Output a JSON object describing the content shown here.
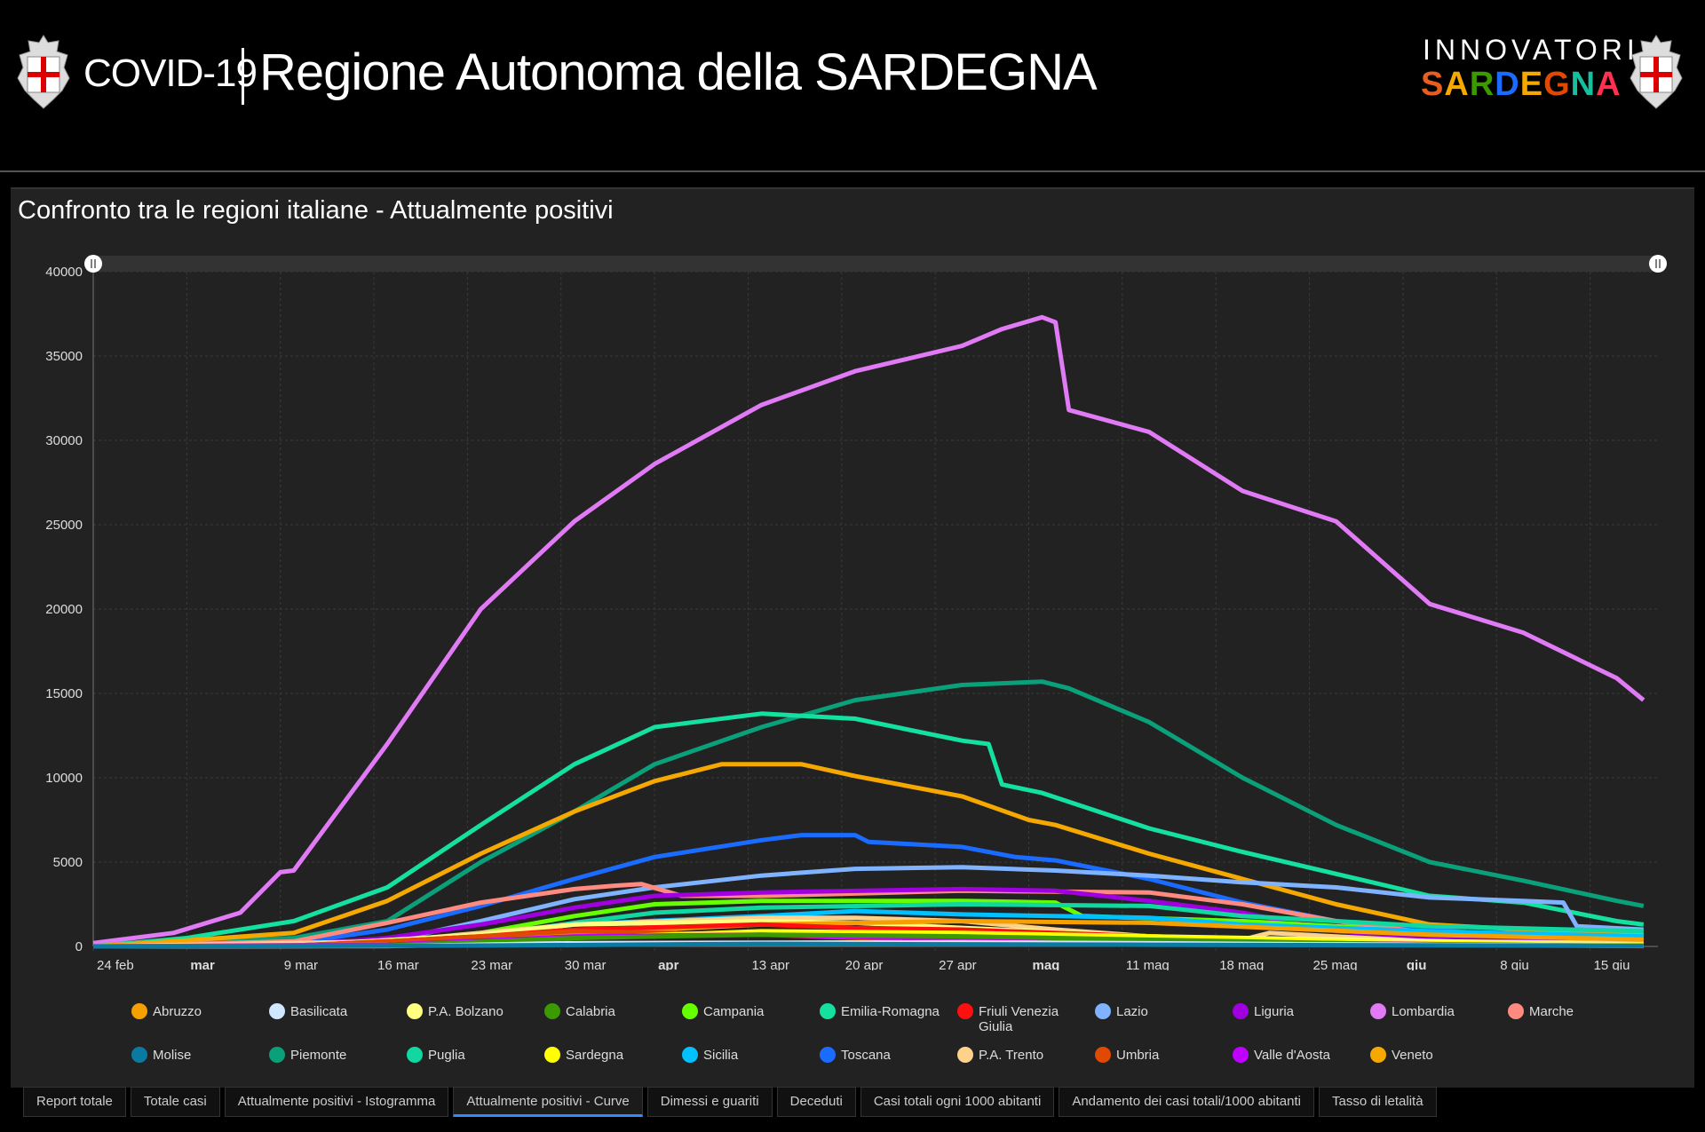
{
  "header": {
    "covid": "COVID-19",
    "title": "Regione Autonoma della SARDEGNA",
    "logo_top": "INNOVATORI",
    "logo_bottom": "SARDEGNA"
  },
  "panel": {
    "title": "Confronto tra le regioni italiane - Attualmente positivi"
  },
  "tabs": [
    {
      "label": "Report totale"
    },
    {
      "label": "Totale casi"
    },
    {
      "label": "Attualmente positivi - Istogramma"
    },
    {
      "label": "Attualmente positivi - Curve",
      "active": true
    },
    {
      "label": "Dimessi e guariti"
    },
    {
      "label": "Deceduti"
    },
    {
      "label": "Casi totali ogni 1000 abitanti"
    },
    {
      "label": "Andamento dei casi totali/1000 abitanti"
    },
    {
      "label": "Tasso di letalità"
    }
  ],
  "chart_data": {
    "type": "line",
    "title": "Confronto tra le regioni italiane - Attualmente positivi",
    "x_unit": "days since 24 feb 2020",
    "ylim": [
      0,
      40000
    ],
    "yticks": [
      0,
      5000,
      10000,
      15000,
      20000,
      25000,
      30000,
      35000,
      40000
    ],
    "xticks": [
      {
        "day": 0,
        "label": "24 feb",
        "bold": false
      },
      {
        "day": 7,
        "label": "mar",
        "bold": true
      },
      {
        "day": 14,
        "label": "9 mar",
        "bold": false
      },
      {
        "day": 21,
        "label": "16 mar",
        "bold": false
      },
      {
        "day": 28,
        "label": "23 mar",
        "bold": false
      },
      {
        "day": 35,
        "label": "30 mar",
        "bold": false
      },
      {
        "day": 42,
        "label": "apr",
        "bold": true
      },
      {
        "day": 49,
        "label": "13 apr",
        "bold": false
      },
      {
        "day": 56,
        "label": "20 apr",
        "bold": false
      },
      {
        "day": 63,
        "label": "27 apr",
        "bold": false
      },
      {
        "day": 70,
        "label": "mag",
        "bold": true
      },
      {
        "day": 77,
        "label": "11 mag",
        "bold": false
      },
      {
        "day": 84,
        "label": "18 mag",
        "bold": false
      },
      {
        "day": 91,
        "label": "25 mag",
        "bold": false
      },
      {
        "day": 98,
        "label": "giu",
        "bold": true
      },
      {
        "day": 105,
        "label": "8 giu",
        "bold": false
      },
      {
        "day": 112,
        "label": "15 giu",
        "bold": false
      }
    ],
    "grid": true,
    "legend_position": "bottom",
    "series": [
      {
        "name": "Abruzzo",
        "color": "#f5a000",
        "points": [
          [
            0,
            0
          ],
          [
            22,
            100
          ],
          [
            29,
            500
          ],
          [
            50,
            1300
          ],
          [
            65,
            1500
          ],
          [
            79,
            1400
          ],
          [
            100,
            700
          ],
          [
            116,
            400
          ]
        ]
      },
      {
        "name": "Basilicata",
        "color": "#cfe8ff",
        "points": [
          [
            0,
            0
          ],
          [
            22,
            20
          ],
          [
            36,
            200
          ],
          [
            65,
            250
          ],
          [
            116,
            30
          ]
        ]
      },
      {
        "name": "P.A. Bolzano",
        "color": "#ffff80",
        "points": [
          [
            0,
            0
          ],
          [
            15,
            50
          ],
          [
            29,
            700
          ],
          [
            36,
            1300
          ],
          [
            50,
            1500
          ],
          [
            57,
            1400
          ],
          [
            65,
            1100
          ],
          [
            79,
            600
          ],
          [
            116,
            100
          ]
        ]
      },
      {
        "name": "Calabria",
        "color": "#3a9a00",
        "points": [
          [
            0,
            0
          ],
          [
            22,
            50
          ],
          [
            36,
            500
          ],
          [
            50,
            700
          ],
          [
            65,
            600
          ],
          [
            100,
            100
          ],
          [
            116,
            50
          ]
        ]
      },
      {
        "name": "Campania",
        "color": "#66ff00",
        "points": [
          [
            0,
            0
          ],
          [
            22,
            200
          ],
          [
            29,
            800
          ],
          [
            36,
            1800
          ],
          [
            42,
            2500
          ],
          [
            50,
            2700
          ],
          [
            65,
            2700
          ],
          [
            72,
            2600
          ],
          [
            74,
            1800
          ],
          [
            86,
            1500
          ],
          [
            93,
            1200
          ],
          [
            100,
            800
          ],
          [
            116,
            500
          ]
        ]
      },
      {
        "name": "Emilia-Romagna",
        "color": "#14e0a0",
        "points": [
          [
            0,
            0
          ],
          [
            7,
            500
          ],
          [
            15,
            1500
          ],
          [
            22,
            3500
          ],
          [
            29,
            7200
          ],
          [
            36,
            10800
          ],
          [
            42,
            13000
          ],
          [
            50,
            13800
          ],
          [
            57,
            13500
          ],
          [
            65,
            12200
          ],
          [
            67,
            12000
          ],
          [
            68,
            9600
          ],
          [
            71,
            9100
          ],
          [
            79,
            7000
          ],
          [
            86,
            5600
          ],
          [
            93,
            4300
          ],
          [
            100,
            3000
          ],
          [
            107,
            2600
          ],
          [
            114,
            1500
          ],
          [
            116,
            1300
          ]
        ]
      },
      {
        "name": "Friuli Venezia Giulia",
        "color": "#ff1010",
        "points": [
          [
            0,
            0
          ],
          [
            15,
            50
          ],
          [
            22,
            300
          ],
          [
            29,
            600
          ],
          [
            36,
            1000
          ],
          [
            50,
            1300
          ],
          [
            57,
            1100
          ],
          [
            65,
            1000
          ],
          [
            79,
            600
          ],
          [
            86,
            400
          ],
          [
            88,
            400
          ],
          [
            89,
            150
          ],
          [
            116,
            80
          ]
        ]
      },
      {
        "name": "Lazio",
        "color": "#7fb2ff",
        "points": [
          [
            0,
            0
          ],
          [
            15,
            100
          ],
          [
            22,
            300
          ],
          [
            29,
            1500
          ],
          [
            36,
            2800
          ],
          [
            42,
            3500
          ],
          [
            50,
            4200
          ],
          [
            57,
            4600
          ],
          [
            65,
            4700
          ],
          [
            72,
            4500
          ],
          [
            79,
            4200
          ],
          [
            86,
            3800
          ],
          [
            93,
            3500
          ],
          [
            100,
            2900
          ],
          [
            107,
            2700
          ],
          [
            110,
            2600
          ],
          [
            111,
            1200
          ],
          [
            116,
            1000
          ]
        ]
      },
      {
        "name": "Liguria",
        "color": "#a000e0",
        "points": [
          [
            0,
            0
          ],
          [
            15,
            100
          ],
          [
            22,
            500
          ],
          [
            29,
            1300
          ],
          [
            36,
            2300
          ],
          [
            42,
            3000
          ],
          [
            50,
            3200
          ],
          [
            65,
            3400
          ],
          [
            72,
            3300
          ],
          [
            79,
            2700
          ],
          [
            86,
            2000
          ],
          [
            93,
            900
          ],
          [
            100,
            500
          ],
          [
            116,
            300
          ]
        ]
      },
      {
        "name": "Lombardia",
        "color": "#e07af5",
        "points": [
          [
            0,
            200
          ],
          [
            6,
            800
          ],
          [
            11,
            2000
          ],
          [
            14,
            4400
          ],
          [
            15,
            4500
          ],
          [
            22,
            12000
          ],
          [
            29,
            20000
          ],
          [
            36,
            25200
          ],
          [
            42,
            28600
          ],
          [
            50,
            32100
          ],
          [
            57,
            34100
          ],
          [
            65,
            35600
          ],
          [
            68,
            36600
          ],
          [
            71,
            37300
          ],
          [
            72,
            37000
          ],
          [
            73,
            31800
          ],
          [
            79,
            30500
          ],
          [
            86,
            27000
          ],
          [
            93,
            25200
          ],
          [
            100,
            20300
          ],
          [
            107,
            18600
          ],
          [
            114,
            15900
          ],
          [
            116,
            14600
          ]
        ]
      },
      {
        "name": "Marche",
        "color": "#ff8a80",
        "points": [
          [
            0,
            0
          ],
          [
            15,
            300
          ],
          [
            22,
            1400
          ],
          [
            29,
            2600
          ],
          [
            36,
            3400
          ],
          [
            39,
            3600
          ],
          [
            41,
            3700
          ],
          [
            44,
            3000
          ],
          [
            50,
            3000
          ],
          [
            65,
            3300
          ],
          [
            79,
            3200
          ],
          [
            86,
            2500
          ],
          [
            93,
            1500
          ],
          [
            100,
            800
          ],
          [
            116,
            300
          ]
        ]
      },
      {
        "name": "Molise",
        "color": "#0a7aa0",
        "points": [
          [
            0,
            0
          ],
          [
            29,
            50
          ],
          [
            50,
            150
          ],
          [
            79,
            100
          ],
          [
            116,
            30
          ]
        ]
      },
      {
        "name": "Piemonte",
        "color": "#0aa07a",
        "points": [
          [
            0,
            0
          ],
          [
            15,
            500
          ],
          [
            22,
            1500
          ],
          [
            29,
            5000
          ],
          [
            36,
            8000
          ],
          [
            42,
            10800
          ],
          [
            50,
            13000
          ],
          [
            57,
            14600
          ],
          [
            65,
            15500
          ],
          [
            71,
            15700
          ],
          [
            73,
            15300
          ],
          [
            79,
            13300
          ],
          [
            86,
            10000
          ],
          [
            93,
            7200
          ],
          [
            100,
            5000
          ],
          [
            107,
            3900
          ],
          [
            114,
            2700
          ],
          [
            116,
            2400
          ]
        ]
      },
      {
        "name": "Puglia",
        "color": "#10d8a0",
        "points": [
          [
            0,
            0
          ],
          [
            22,
            200
          ],
          [
            29,
            600
          ],
          [
            36,
            1400
          ],
          [
            42,
            2000
          ],
          [
            50,
            2300
          ],
          [
            65,
            2500
          ],
          [
            79,
            2400
          ],
          [
            86,
            1800
          ],
          [
            93,
            1500
          ],
          [
            100,
            1200
          ],
          [
            116,
            900
          ]
        ]
      },
      {
        "name": "Sardegna",
        "color": "#ffff00",
        "points": [
          [
            0,
            0
          ],
          [
            22,
            100
          ],
          [
            29,
            300
          ],
          [
            50,
            900
          ],
          [
            65,
            800
          ],
          [
            79,
            600
          ],
          [
            100,
            200
          ],
          [
            116,
            100
          ]
        ]
      },
      {
        "name": "Sicilia",
        "color": "#00c0ff",
        "points": [
          [
            0,
            0
          ],
          [
            22,
            200
          ],
          [
            29,
            700
          ],
          [
            36,
            1300
          ],
          [
            50,
            1800
          ],
          [
            57,
            2100
          ],
          [
            65,
            1900
          ],
          [
            79,
            1700
          ],
          [
            86,
            1300
          ],
          [
            100,
            900
          ],
          [
            116,
            600
          ]
        ]
      },
      {
        "name": "Toscana",
        "color": "#1a6bff",
        "points": [
          [
            0,
            0
          ],
          [
            15,
            200
          ],
          [
            22,
            1000
          ],
          [
            29,
            2400
          ],
          [
            36,
            4000
          ],
          [
            42,
            5300
          ],
          [
            50,
            6300
          ],
          [
            53,
            6600
          ],
          [
            57,
            6600
          ],
          [
            58,
            6200
          ],
          [
            65,
            5900
          ],
          [
            69,
            5300
          ],
          [
            72,
            5100
          ],
          [
            79,
            4000
          ],
          [
            86,
            2600
          ],
          [
            93,
            1500
          ],
          [
            100,
            1000
          ],
          [
            107,
            600
          ],
          [
            116,
            400
          ]
        ]
      },
      {
        "name": "P.A. Trento",
        "color": "#ffd18a",
        "points": [
          [
            0,
            0
          ],
          [
            22,
            300
          ],
          [
            29,
            800
          ],
          [
            36,
            1300
          ],
          [
            50,
            1700
          ],
          [
            57,
            1700
          ],
          [
            65,
            1500
          ],
          [
            72,
            1000
          ],
          [
            79,
            600
          ],
          [
            86,
            400
          ],
          [
            88,
            800
          ],
          [
            100,
            300
          ],
          [
            116,
            200
          ]
        ]
      },
      {
        "name": "Umbria",
        "color": "#e04a00",
        "points": [
          [
            0,
            0
          ],
          [
            15,
            50
          ],
          [
            22,
            300
          ],
          [
            36,
            900
          ],
          [
            50,
            700
          ],
          [
            65,
            300
          ],
          [
            116,
            20
          ]
        ]
      },
      {
        "name": "Valle d'Aosta",
        "color": "#c000ff",
        "points": [
          [
            0,
            0
          ],
          [
            22,
            100
          ],
          [
            36,
            600
          ],
          [
            50,
            700
          ],
          [
            65,
            400
          ],
          [
            116,
            20
          ]
        ]
      },
      {
        "name": "Veneto",
        "color": "#f5a800",
        "points": [
          [
            0,
            0
          ],
          [
            6,
            300
          ],
          [
            15,
            800
          ],
          [
            22,
            2700
          ],
          [
            29,
            5500
          ],
          [
            36,
            8000
          ],
          [
            42,
            9800
          ],
          [
            47,
            10800
          ],
          [
            53,
            10800
          ],
          [
            57,
            10100
          ],
          [
            65,
            8900
          ],
          [
            70,
            7500
          ],
          [
            72,
            7200
          ],
          [
            79,
            5500
          ],
          [
            86,
            4000
          ],
          [
            93,
            2500
          ],
          [
            100,
            1300
          ],
          [
            107,
            1000
          ],
          [
            116,
            700
          ]
        ]
      }
    ]
  }
}
